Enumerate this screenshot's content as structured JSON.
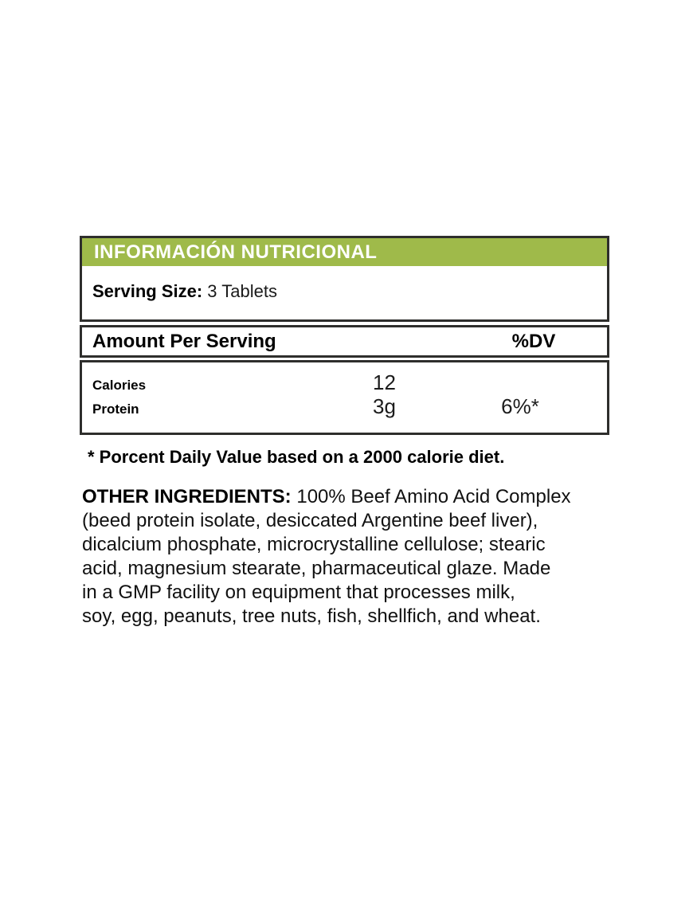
{
  "colors": {
    "header_bg": "#9fba4a",
    "header_text": "#ffffff",
    "border": "#2e2e2c",
    "text": "#000000",
    "background": "#ffffff"
  },
  "panel": {
    "title": "INFORMACIÓN NUTRICIONAL",
    "serving_size_label": "Serving Size:",
    "serving_size_value": "3 Tablets",
    "amount_header": "Amount Per Serving",
    "dv_header": "%DV",
    "nutrients": [
      {
        "name": "Calories",
        "amount": "12",
        "dv": ""
      },
      {
        "name": "Protein",
        "amount": "3g",
        "dv": "6%*"
      }
    ]
  },
  "footnote": "* Porcent Daily Value based on a 2000 calorie diet.",
  "other_ingredients": {
    "label": "OTHER INGREDIENTS:",
    "lines": [
      "100% Beef Amino Acid Complex",
      "(beed protein isolate, desiccated Argentine beef liver),",
      "dicalcium phosphate, microcrystalline cellulose; stearic",
      "acid, magnesium stearate, pharmaceutical glaze. Made",
      "in a GMP facility on equipment that processes milk,",
      "soy, egg, peanuts, tree nuts, fish, shellfich, and wheat."
    ]
  }
}
